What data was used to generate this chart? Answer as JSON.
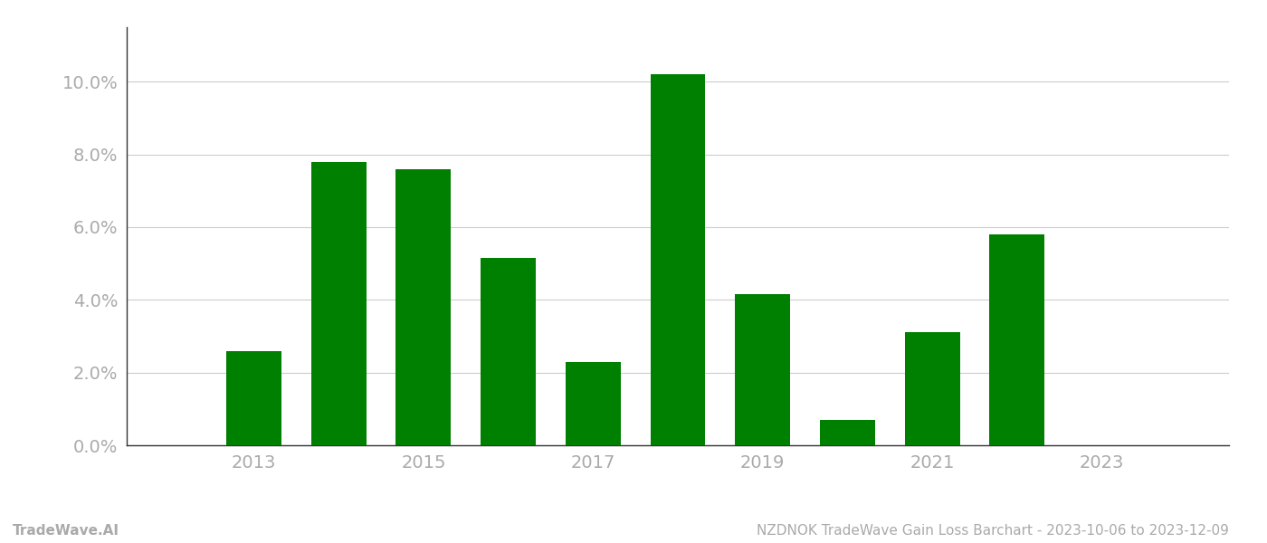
{
  "years": [
    2013,
    2014,
    2015,
    2016,
    2017,
    2018,
    2019,
    2020,
    2021,
    2022
  ],
  "values": [
    0.026,
    0.078,
    0.076,
    0.0515,
    0.023,
    0.102,
    0.0415,
    0.007,
    0.031,
    0.058
  ],
  "bar_color": "#008000",
  "title": "NZDNOK TradeWave Gain Loss Barchart - 2023-10-06 to 2023-12-09",
  "watermark": "TradeWave.AI",
  "ylim": [
    0,
    0.115
  ],
  "yticks": [
    0.0,
    0.02,
    0.04,
    0.06,
    0.08,
    0.1
  ],
  "xticks": [
    2013,
    2015,
    2017,
    2019,
    2021,
    2023
  ],
  "xlim": [
    2011.5,
    2024.5
  ],
  "tick_fontsize": 14,
  "title_fontsize": 11,
  "watermark_fontsize": 11,
  "background_color": "#ffffff",
  "grid_color": "#cccccc",
  "tick_label_color": "#aaaaaa",
  "title_color": "#aaaaaa",
  "watermark_color": "#aaaaaa",
  "bar_width": 0.65
}
